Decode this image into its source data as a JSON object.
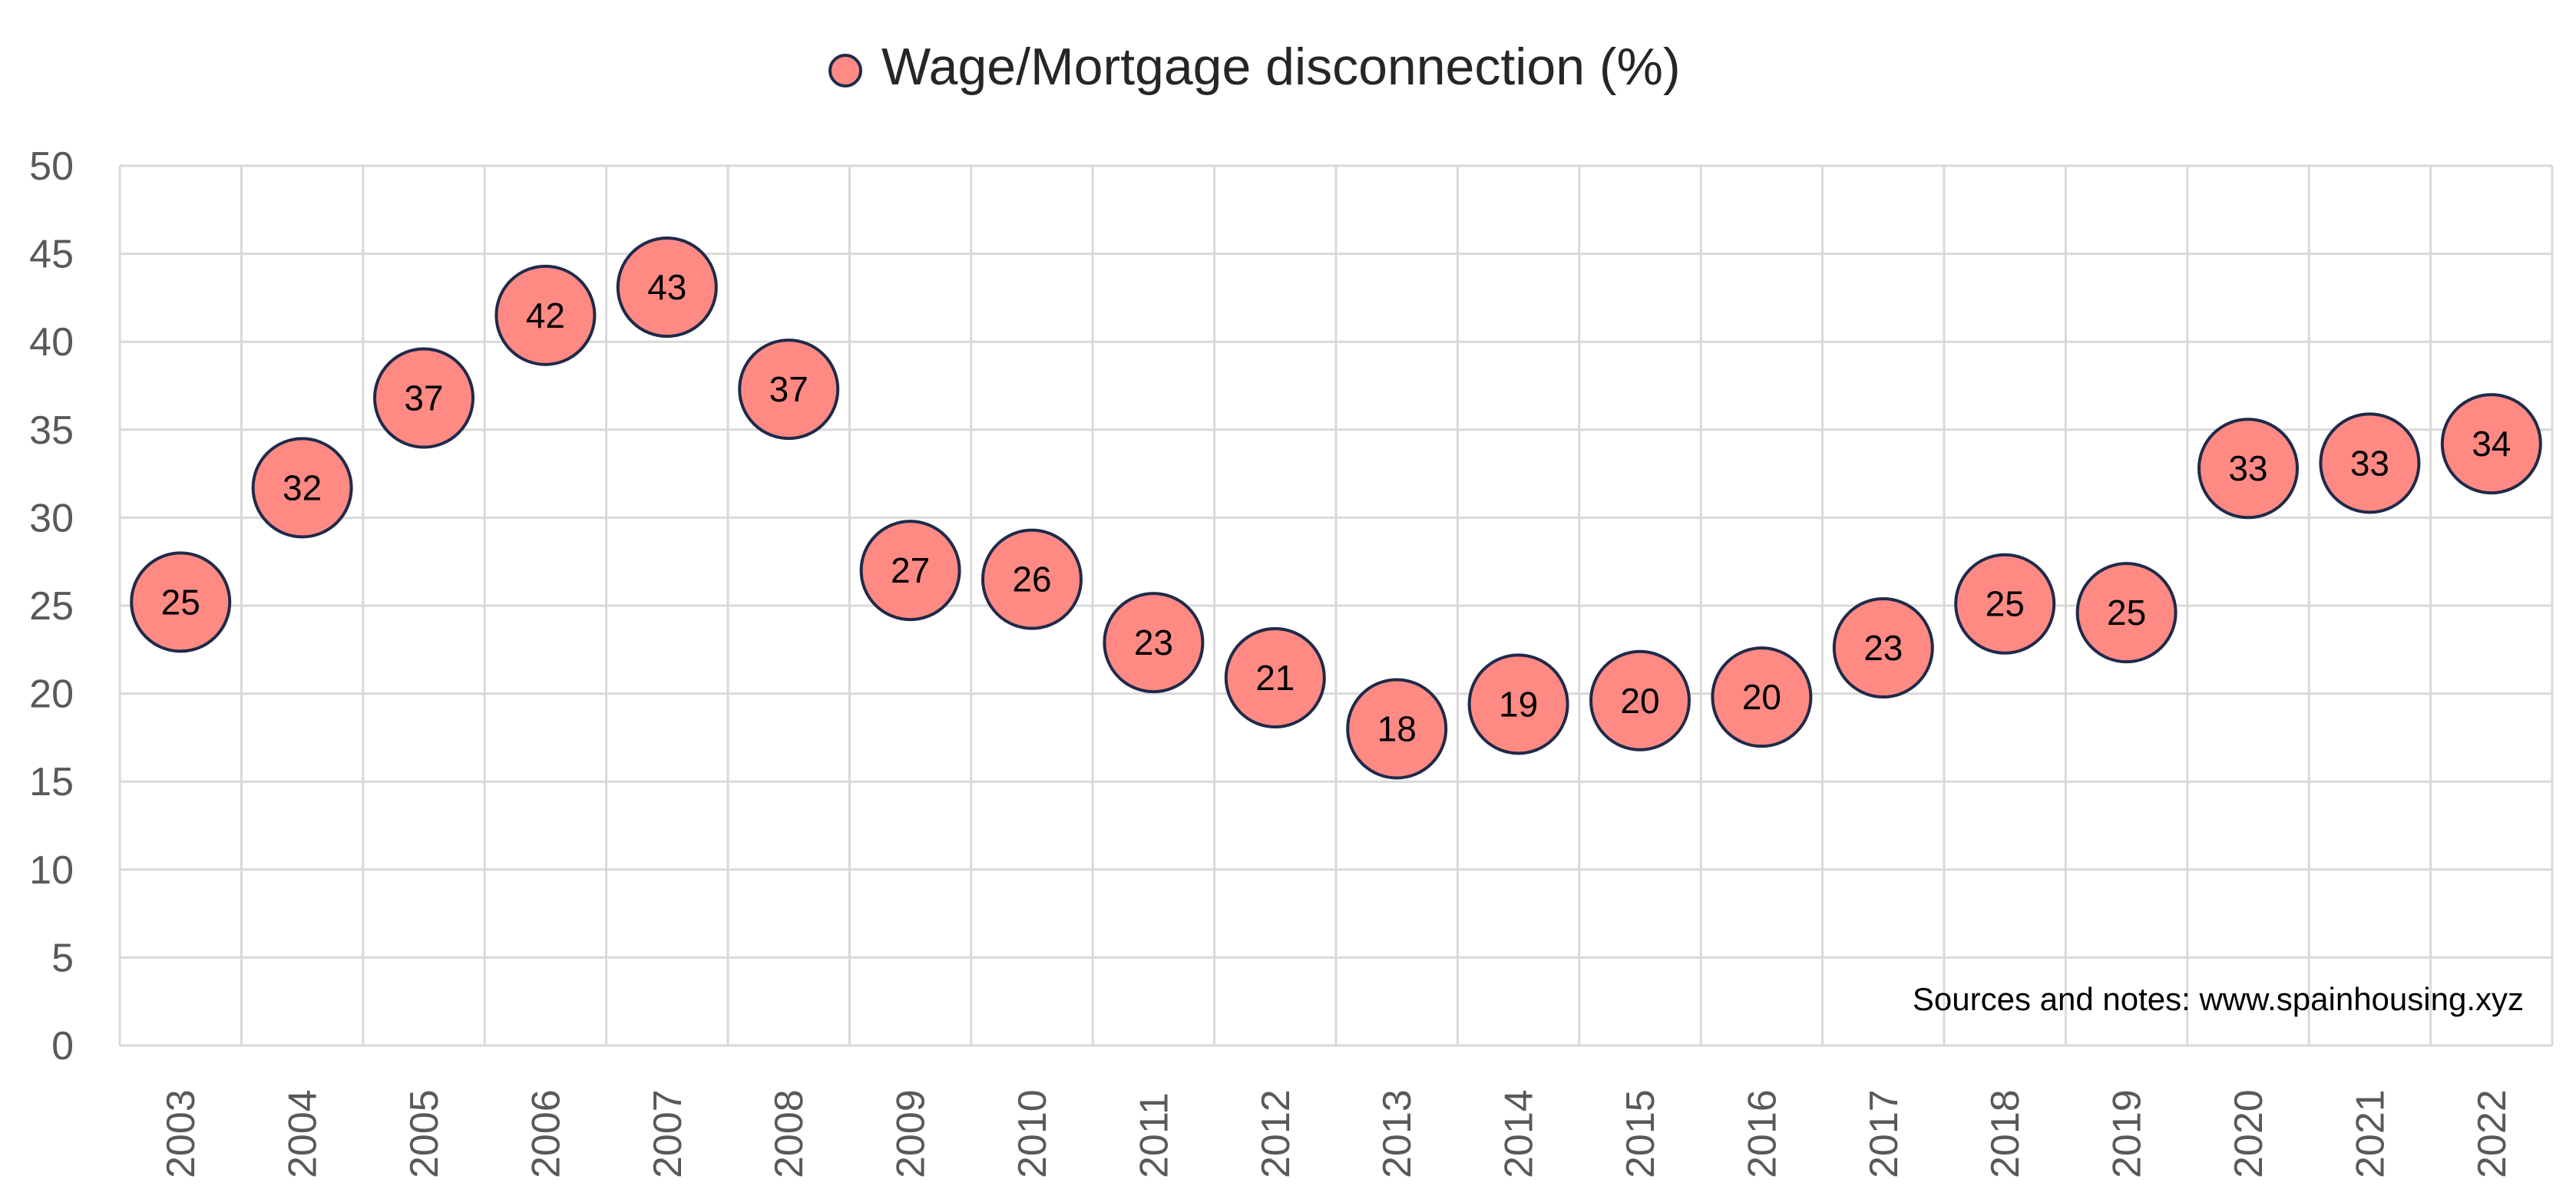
{
  "chart_data": {
    "type": "scatter",
    "title": "",
    "legend": {
      "label": "Wage/Mortgage disconnection (%)",
      "placement": "top-center"
    },
    "series": [
      {
        "name": "Wage/Mortgage disconnection (%)",
        "color": "#ff8a84",
        "edge_color": "#1f2a4a",
        "points": [
          {
            "x": "2003",
            "y": 25.2,
            "label": "25"
          },
          {
            "x": "2004",
            "y": 31.7,
            "label": "32"
          },
          {
            "x": "2005",
            "y": 36.8,
            "label": "37"
          },
          {
            "x": "2006",
            "y": 41.5,
            "label": "42"
          },
          {
            "x": "2007",
            "y": 43.1,
            "label": "43"
          },
          {
            "x": "2008",
            "y": 37.3,
            "label": "37"
          },
          {
            "x": "2009",
            "y": 27.0,
            "label": "27"
          },
          {
            "x": "2010",
            "y": 26.5,
            "label": "26"
          },
          {
            "x": "2011",
            "y": 22.9,
            "label": "23"
          },
          {
            "x": "2012",
            "y": 20.9,
            "label": "21"
          },
          {
            "x": "2013",
            "y": 18.0,
            "label": "18"
          },
          {
            "x": "2014",
            "y": 19.4,
            "label": "19"
          },
          {
            "x": "2015",
            "y": 19.6,
            "label": "20"
          },
          {
            "x": "2016",
            "y": 19.8,
            "label": "20"
          },
          {
            "x": "2017",
            "y": 22.6,
            "label": "23"
          },
          {
            "x": "2018",
            "y": 25.1,
            "label": "25"
          },
          {
            "x": "2019",
            "y": 24.6,
            "label": "25"
          },
          {
            "x": "2020",
            "y": 32.8,
            "label": "33"
          },
          {
            "x": "2021",
            "y": 33.1,
            "label": "33"
          },
          {
            "x": "2022",
            "y": 34.2,
            "label": "34"
          }
        ]
      }
    ],
    "categories": [
      "2003",
      "2004",
      "2005",
      "2006",
      "2007",
      "2008",
      "2009",
      "2010",
      "2011",
      "2012",
      "2013",
      "2014",
      "2015",
      "2016",
      "2017",
      "2018",
      "2019",
      "2020",
      "2021",
      "2022"
    ],
    "y_ticks": [
      "0",
      "5",
      "10",
      "15",
      "20",
      "25",
      "30",
      "35",
      "40",
      "45",
      "50"
    ],
    "ylim": [
      0,
      50
    ],
    "grid": true,
    "x_tick_orientation": "vertical",
    "annotation": "Sources and notes: www.spainhousing.xyz"
  },
  "colors": {
    "grid": "#d9d9d9",
    "axis_text": "#595959",
    "title_text": "#262626"
  }
}
